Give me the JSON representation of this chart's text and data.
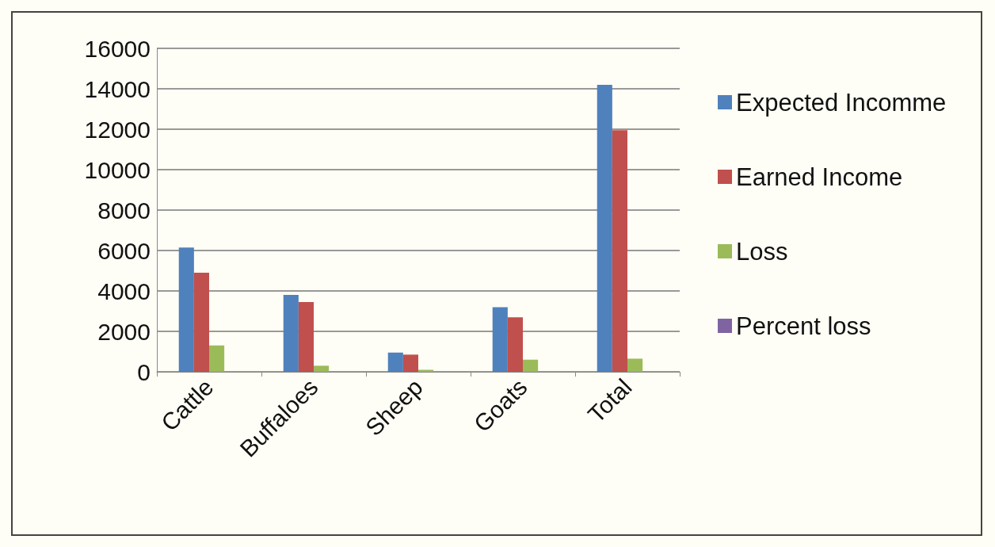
{
  "chart_data": {
    "type": "bar",
    "categories": [
      "Cattle",
      "Buffaloes",
      "Sheep",
      "Goats",
      "Total"
    ],
    "series": [
      {
        "name": "Expected Incomme",
        "color": "#4f81bd",
        "values": [
          6150,
          3800,
          950,
          3200,
          14200
        ]
      },
      {
        "name": "Earned Income",
        "color": "#c0504d",
        "values": [
          4900,
          3450,
          850,
          2700,
          11950
        ]
      },
      {
        "name": "Loss",
        "color": "#9bbb59",
        "values": [
          1300,
          300,
          100,
          600,
          650
        ]
      },
      {
        "name": "Percent loss",
        "color": "#8064a2",
        "values": [
          null,
          null,
          null,
          null,
          null
        ]
      }
    ],
    "ylim": [
      0,
      16000
    ],
    "yticks": [
      0,
      2000,
      4000,
      6000,
      8000,
      10000,
      12000,
      14000,
      16000
    ],
    "grid": "y",
    "legend": "right"
  }
}
